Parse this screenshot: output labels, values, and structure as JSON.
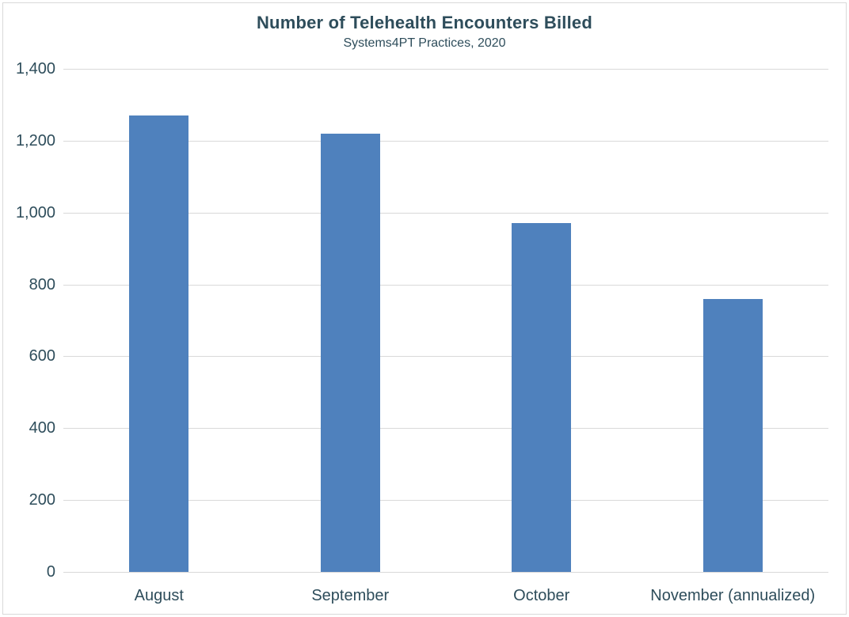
{
  "chart": {
    "title": "Number of Telehealth Encounters Billed",
    "subtitle": "Systems4PT Practices, 2020"
  },
  "chart_data": {
    "type": "bar",
    "title": "Number of Telehealth Encounters Billed",
    "subtitle": "Systems4PT Practices, 2020",
    "categories": [
      "August",
      "September",
      "October",
      "November (annualized)"
    ],
    "values": [
      1270,
      1220,
      970,
      760
    ],
    "xlabel": "",
    "ylabel": "",
    "ylim": [
      0,
      1400
    ],
    "ytick_interval": 200,
    "ytick_labels": [
      "0",
      "200",
      "400",
      "600",
      "800",
      "1,000",
      "1,200",
      "1,400"
    ],
    "grid": true,
    "legend": false,
    "bar_color": "#4f81bd",
    "text_color": "#2e4d5b",
    "gridline_color": "#d9d9d9",
    "background_color": "#ffffff",
    "border_color": "#d9d9d9"
  }
}
